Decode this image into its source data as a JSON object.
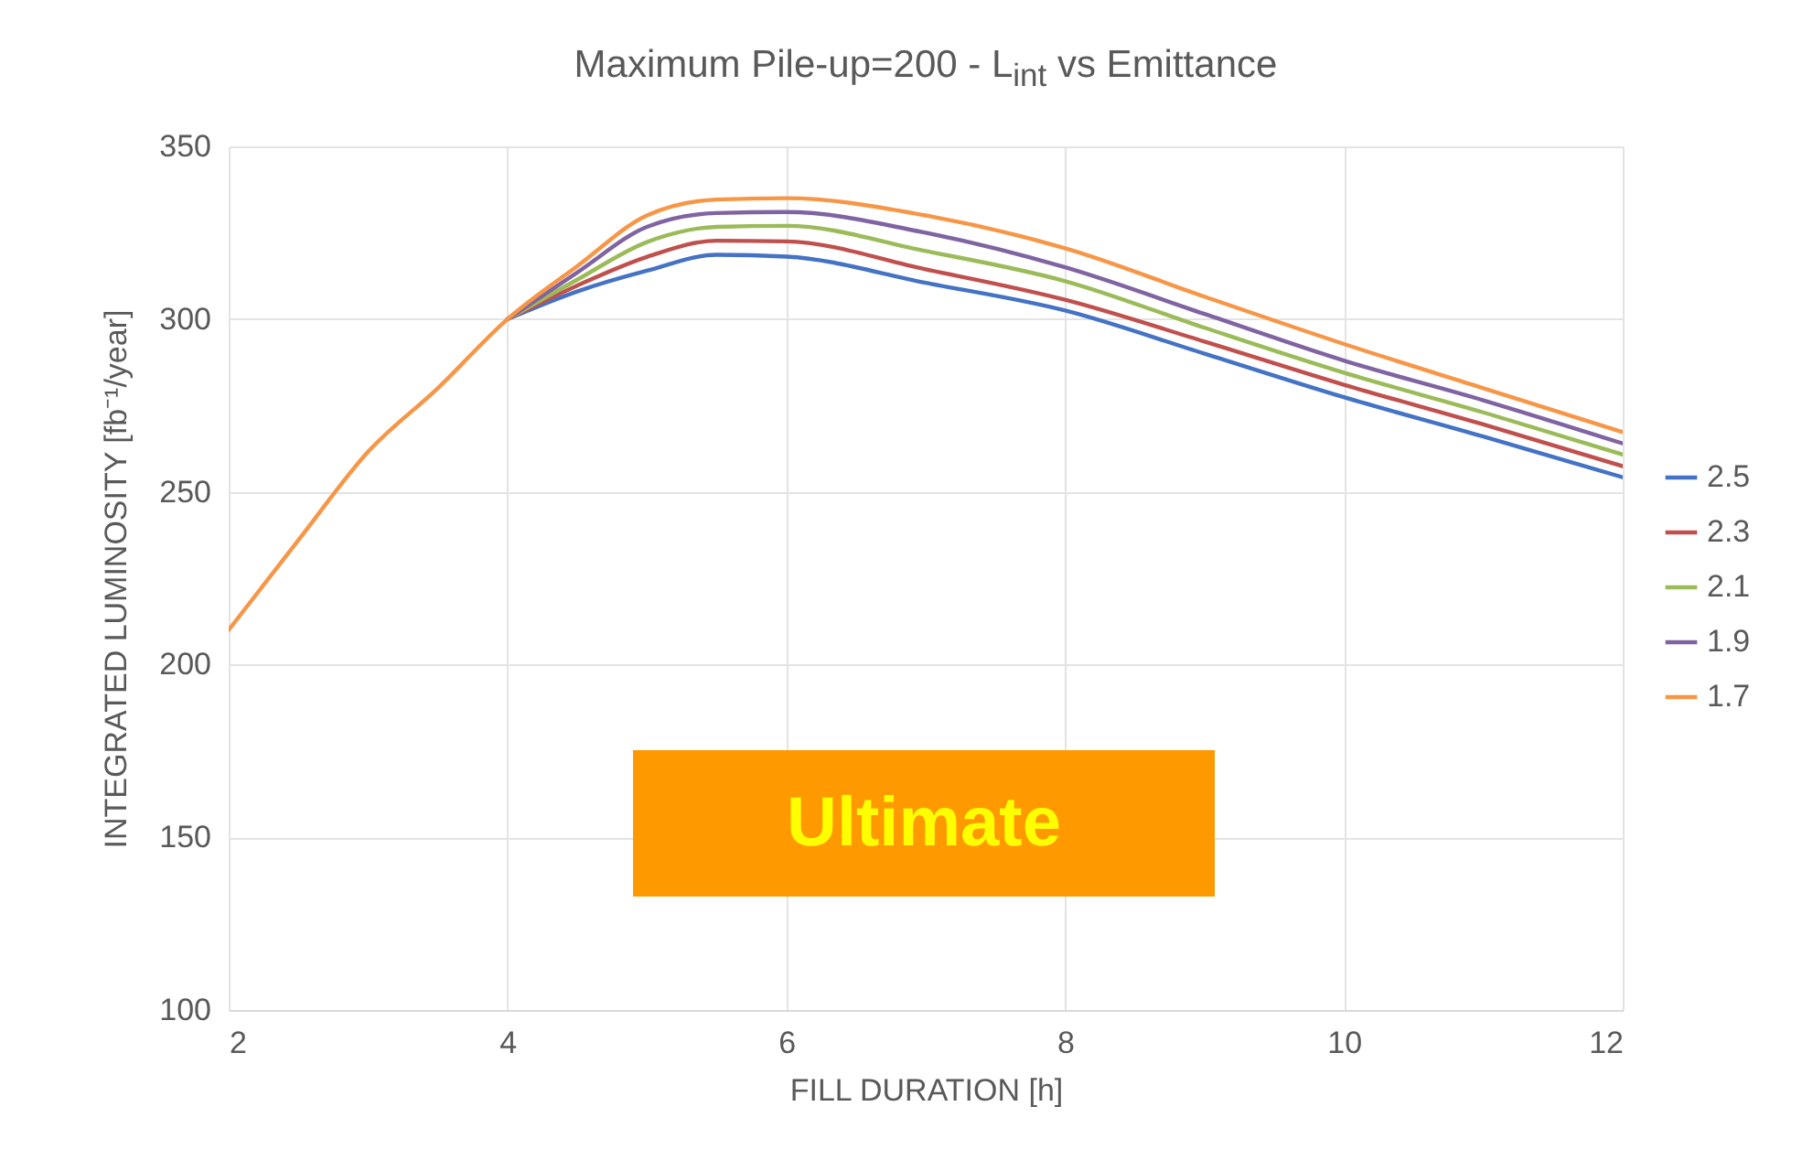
{
  "chart_data": {
    "type": "line",
    "title": "Maximum Pile-up=200 - L$_{int}$ vs Emittance",
    "xlabel": "FILL DURATION [h]",
    "ylabel": "INTEGRATED LUMINOSITY [fb⁻¹/year]",
    "x": [
      2,
      2.5,
      3,
      3.5,
      4,
      4.5,
      5,
      5.5,
      6,
      7,
      8,
      9,
      10,
      11,
      12
    ],
    "series": [
      {
        "name": "2.5",
        "color": "#4472c4",
        "values": [
          null,
          null,
          null,
          null,
          300,
          308,
          314,
          318.6,
          318.1,
          310.5,
          302.5,
          290,
          277.4,
          266,
          254.2
        ]
      },
      {
        "name": "2.3",
        "color": "#c0504d",
        "values": [
          null,
          null,
          null,
          null,
          300,
          309.7,
          318,
          322.7,
          322.5,
          314.4,
          305.6,
          293.5,
          281,
          269.5,
          257.4
        ]
      },
      {
        "name": "2.1",
        "color": "#9bbb59",
        "values": [
          null,
          null,
          null,
          null,
          300,
          311.4,
          322.3,
          326.7,
          327,
          319.7,
          311,
          297.5,
          284.5,
          273,
          260.8
        ]
      },
      {
        "name": "1.9",
        "color": "#8064a2",
        "values": [
          null,
          null,
          null,
          null,
          300,
          313.5,
          326.7,
          330.7,
          331,
          325,
          315,
          301.5,
          288,
          276.5,
          264
        ]
      },
      {
        "name": "1.7",
        "color": "#f79646",
        "values": [
          210,
          236,
          261.6,
          280,
          300,
          315.3,
          330,
          334.6,
          335,
          330,
          320.5,
          306.5,
          292.8,
          280,
          267.3
        ]
      }
    ],
    "xlim": [
      2,
      12
    ],
    "xticks": [
      2,
      4,
      6,
      8,
      10,
      12
    ],
    "ylim": [
      100,
      350
    ],
    "yticks": [
      100,
      150,
      200,
      250,
      300,
      350
    ],
    "grid": true,
    "legend": "right",
    "marker": "none",
    "annotations": [
      "Ultimate"
    ]
  }
}
